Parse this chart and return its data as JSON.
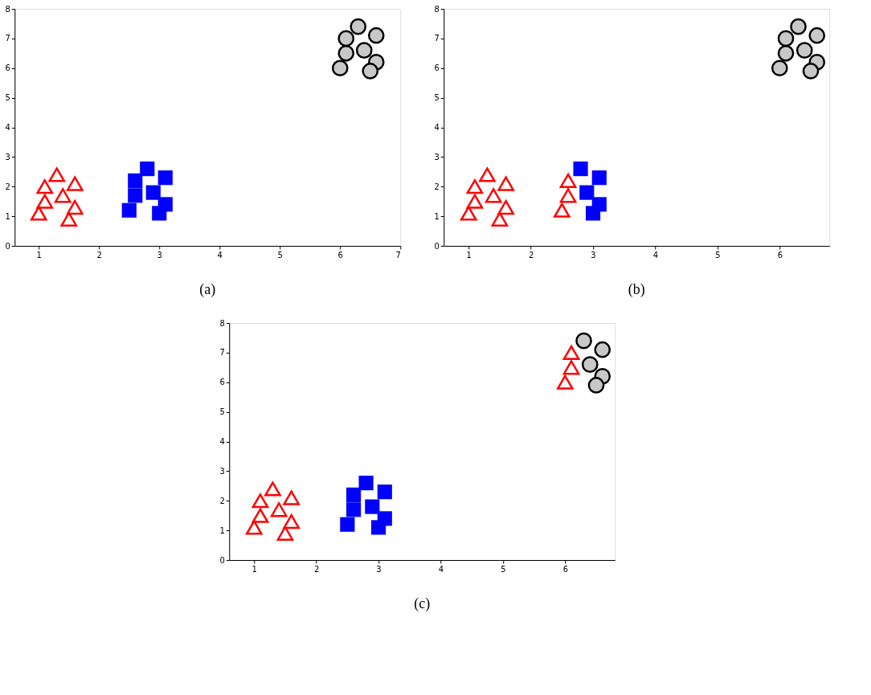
{
  "chart_data": [
    {
      "type": "scatter",
      "title": "(a)",
      "xlim": [
        0.6,
        7.0
      ],
      "xticks": [
        1,
        2,
        3,
        4,
        5,
        6,
        7
      ],
      "ylim": [
        0,
        8
      ],
      "yticks": [
        0,
        1,
        2,
        3,
        4,
        5,
        6,
        7,
        8
      ],
      "grid": false,
      "series": [
        {
          "color": "#ff0000",
          "marker": "triangle",
          "x": [
            1.0,
            1.1,
            1.3,
            1.6,
            1.1,
            1.4,
            1.6,
            1.5
          ],
          "values": [
            1.1,
            2.0,
            2.4,
            2.1,
            1.5,
            1.7,
            1.3,
            0.9
          ]
        },
        {
          "color": "#0000ff",
          "marker": "square",
          "x": [
            2.5,
            2.6,
            2.6,
            2.8,
            3.1,
            2.9,
            3.1,
            3.0
          ],
          "values": [
            1.2,
            2.2,
            1.7,
            2.6,
            2.3,
            1.8,
            1.4,
            1.1
          ]
        },
        {
          "color": "#c8c8c8",
          "marker": "circle",
          "x": [
            6.3,
            6.1,
            6.6,
            6.1,
            6.4,
            6.0,
            6.6,
            6.5
          ],
          "values": [
            7.4,
            7.0,
            7.1,
            6.5,
            6.6,
            6.0,
            6.2,
            5.9
          ]
        }
      ]
    },
    {
      "type": "scatter",
      "title": "(b)",
      "xlim": [
        0.6,
        6.8
      ],
      "xticks": [
        1,
        2,
        3,
        4,
        5,
        6
      ],
      "ylim": [
        0,
        8
      ],
      "yticks": [
        0,
        1,
        2,
        3,
        4,
        5,
        6,
        7,
        8
      ],
      "grid": false,
      "series": [
        {
          "color": "#ff0000",
          "marker": "triangle",
          "x": [
            1.0,
            1.1,
            1.3,
            1.6,
            1.1,
            1.4,
            1.6,
            1.5,
            2.5,
            2.6,
            2.6
          ],
          "values": [
            1.1,
            2.0,
            2.4,
            2.1,
            1.5,
            1.7,
            1.3,
            0.9,
            1.2,
            2.2,
            1.7
          ]
        },
        {
          "color": "#0000ff",
          "marker": "square",
          "x": [
            2.8,
            3.1,
            2.9,
            3.1,
            3.0
          ],
          "values": [
            2.6,
            2.3,
            1.8,
            1.4,
            1.1
          ]
        },
        {
          "color": "#c8c8c8",
          "marker": "circle",
          "x": [
            6.3,
            6.1,
            6.6,
            6.1,
            6.4,
            6.0,
            6.6,
            6.5
          ],
          "values": [
            7.4,
            7.0,
            7.1,
            6.5,
            6.6,
            6.0,
            6.2,
            5.9
          ]
        }
      ]
    },
    {
      "type": "scatter",
      "title": "(c)",
      "xlim": [
        0.6,
        6.8
      ],
      "xticks": [
        1,
        2,
        3,
        4,
        5,
        6
      ],
      "ylim": [
        0,
        8
      ],
      "yticks": [
        0,
        1,
        2,
        3,
        4,
        5,
        6,
        7,
        8
      ],
      "grid": false,
      "series": [
        {
          "color": "#ff0000",
          "marker": "triangle",
          "x": [
            1.0,
            1.1,
            1.3,
            1.6,
            1.1,
            1.4,
            1.6,
            1.5,
            6.1,
            6.1,
            6.0
          ],
          "values": [
            1.1,
            2.0,
            2.4,
            2.1,
            1.5,
            1.7,
            1.3,
            0.9,
            7.0,
            6.5,
            6.0
          ]
        },
        {
          "color": "#0000ff",
          "marker": "square",
          "x": [
            2.5,
            2.6,
            2.6,
            2.8,
            3.1,
            2.9,
            3.1,
            3.0
          ],
          "values": [
            1.2,
            2.2,
            1.7,
            2.6,
            2.3,
            1.8,
            1.4,
            1.1
          ]
        },
        {
          "color": "#c8c8c8",
          "marker": "circle",
          "x": [
            6.3,
            6.6,
            6.4,
            6.6,
            6.5
          ],
          "values": [
            7.4,
            7.1,
            6.6,
            6.2,
            5.9
          ]
        }
      ]
    }
  ]
}
